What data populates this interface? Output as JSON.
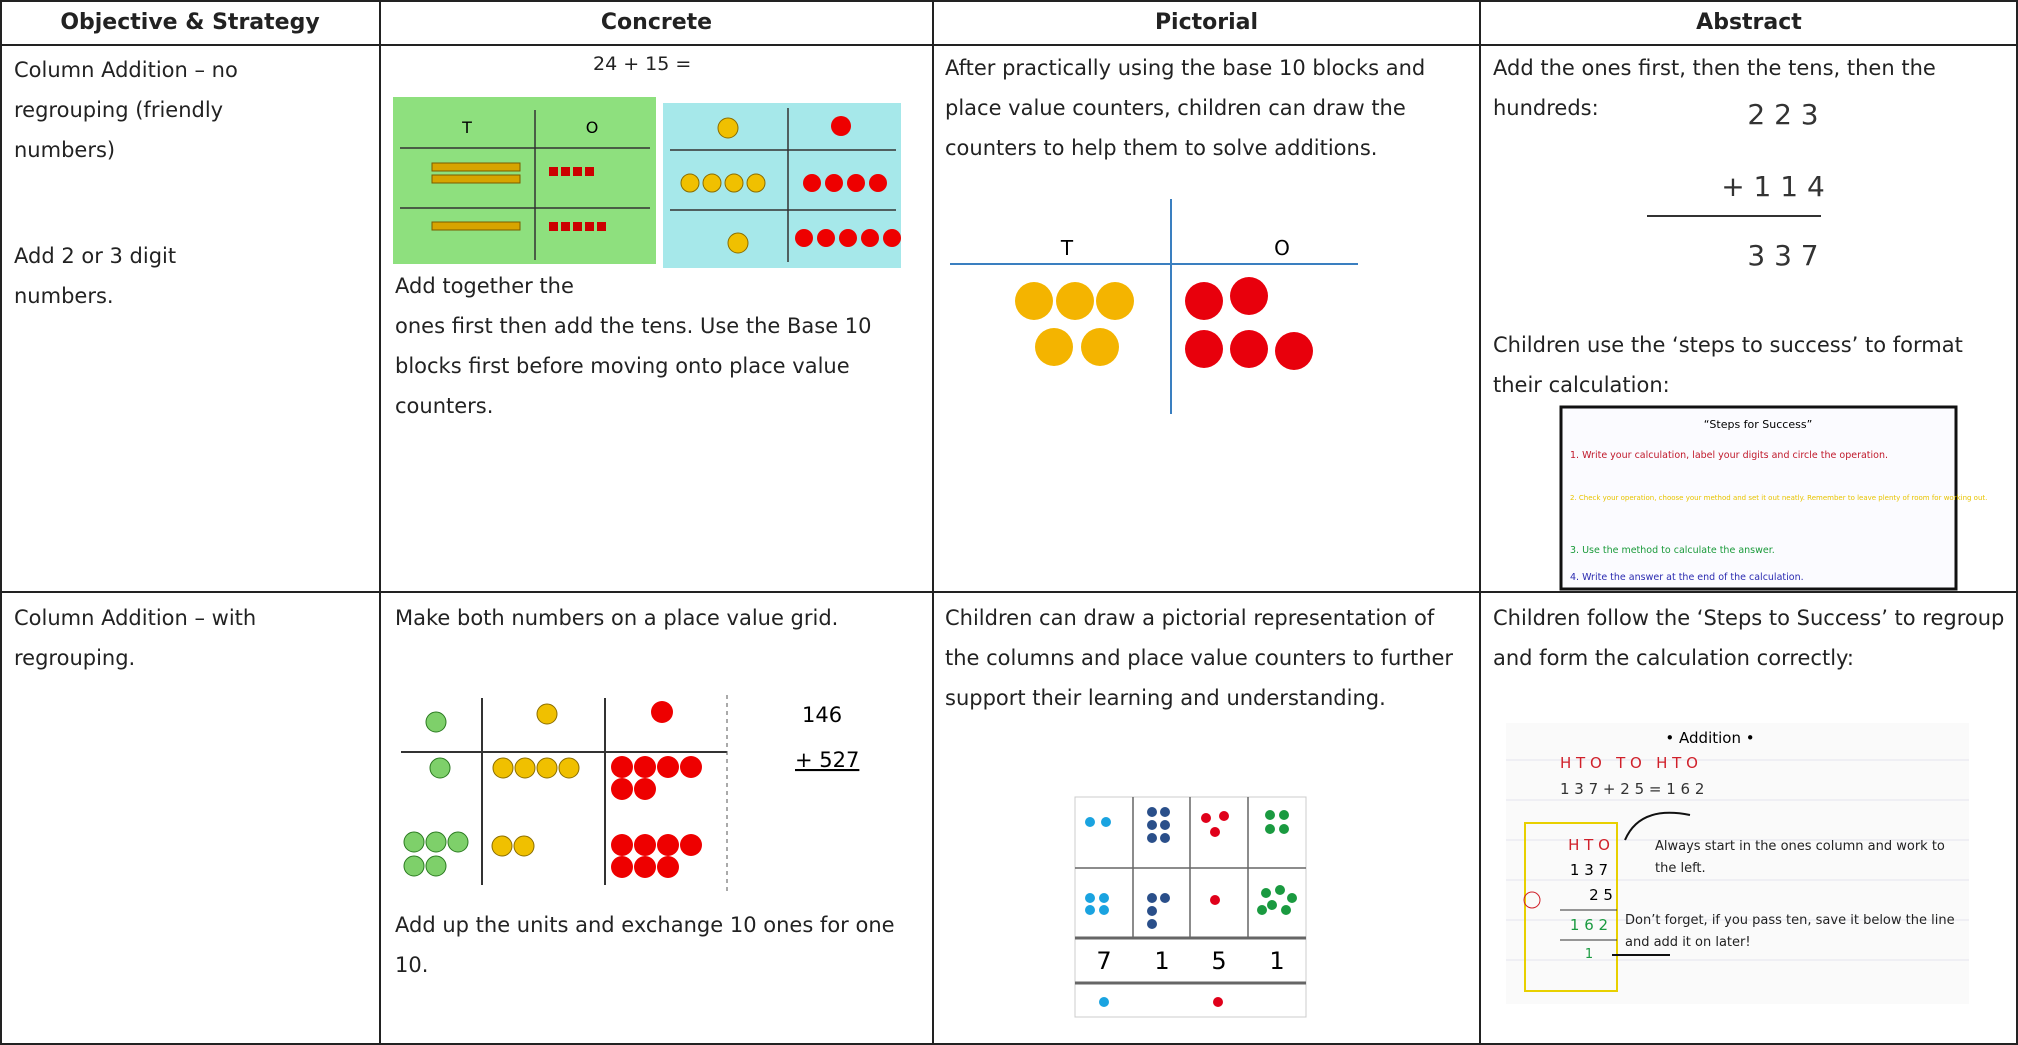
{
  "table": {
    "headers": [
      "Objective & Strategy",
      "Concrete",
      "Pictorial",
      "Abstract"
    ],
    "rows": [
      {
        "objective": [
          "Column Addition – no regrouping (friendly numbers)",
          "Add 2 or 3 digit numbers."
        ],
        "concrete": {
          "sum": "24  + 15 =",
          "place_value_headers": [
            "T",
            "O"
          ],
          "text": [
            "Add together the",
            "ones first then add the tens. Use the Base 10 blocks first before moving onto place value counters."
          ]
        },
        "pictorial": {
          "text": "After practically using the base 10 blocks and place value counters, children can draw the counters to help them to solve additions.",
          "place_value_headers": [
            "T",
            "O"
          ]
        },
        "abstract": {
          "intro": "Add the ones first, then the tens, then the hundreds:",
          "calculation": [
            "2 2 3",
            "+ 1 1 4",
            "3 3 7"
          ],
          "text": "Children use the ‘steps to success’ to format their calculation:",
          "steps": {
            "title": "“Steps for Success”",
            "items": [
              "1. Write your calculation, label your digits and circle the operation.",
              "2. Check your operation, choose your method and set it out neatly. Remember to leave plenty of room for working out.",
              "3. Use the method to calculate the answer.",
              "4. Write the answer at the end of the calculation."
            ]
          }
        }
      },
      {
        "objective": [
          "Column Addition – with regrouping."
        ],
        "concrete": {
          "text": "Make both numbers on a place value grid.",
          "calculation": [
            "146",
            "+ 527"
          ],
          "text2": "Add up the units and exchange 10 ones for one 10."
        },
        "pictorial": {
          "text": "Children can draw a pictorial representation of the columns and place value counters to further support their learning and understanding.",
          "totals": [
            "7",
            "1",
            "5",
            "1"
          ]
        },
        "abstract": {
          "text": "Children follow the ‘Steps to Success’ to regroup and form the calculation correctly:",
          "image": {
            "title": "• Addition •",
            "labels": "H T O   T O   H T O",
            "sum": "1 3 7 + 2 5 = 1 6 2",
            "grid": [
              "H T O",
              "1 3 7",
              "2 5",
              "1 6 2",
              "1"
            ],
            "note1": "Always start in the ones column and work to the left.",
            "note2": "Don’t forget, if you pass ten, save it below the line and add it on later!"
          }
        }
      }
    ]
  }
}
